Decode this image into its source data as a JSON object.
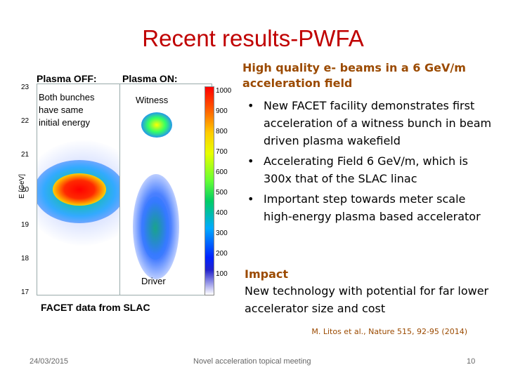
{
  "slide": {
    "title": "Recent results-PWFA"
  },
  "figure": {
    "label_off": "Plasma OFF:",
    "label_on": "Plasma ON:",
    "text_off_lines": [
      "Both bunches",
      "have same",
      "initial energy"
    ],
    "label_witness": "Witness",
    "label_driver": "Driver",
    "ylabel": "E [GeV]",
    "yticks": [
      "23",
      "22",
      "21",
      "20",
      "19",
      "18",
      "17"
    ],
    "colorbar_ticks": [
      "1000",
      "900",
      "800",
      "700",
      "600",
      "500",
      "400",
      "300",
      "200",
      "100"
    ],
    "caption": "FACET data from SLAC"
  },
  "content": {
    "heading_lines": [
      "High quality e- beams in a 6 GeV/m",
      "acceleration field"
    ],
    "bullets": [
      "New FACET facility demonstrates first acceleration of a witness bunch in beam driven plasma wakefield",
      "Accelerating Field 6 GeV/m, which is 300x that of the SLAC linac",
      "Important step towards meter scale high-energy plasma based accelerator"
    ],
    "impact_heading": "Impact",
    "impact_text": "New technology with potential for far lower accelerator size and cost",
    "citation": "M. Litos et al., Nature 515, 92-95 (2014)"
  },
  "footer": {
    "date": "24/03/2015",
    "meeting": "Novel acceleration topical meeting",
    "page": "10"
  },
  "colors": {
    "title": "#c00000",
    "heading": "#9b4a00"
  }
}
